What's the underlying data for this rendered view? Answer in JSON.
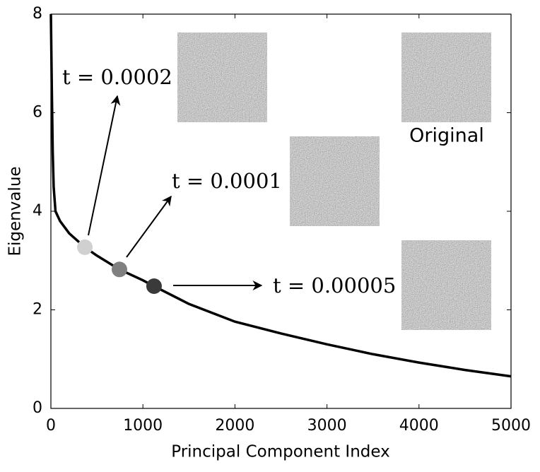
{
  "chart_data": {
    "type": "line",
    "x_label": "Principal Component Index",
    "y_label": "Eigenvalue",
    "x": [
      0,
      10,
      20,
      30,
      50,
      100,
      200,
      369,
      500,
      745,
      1000,
      1121,
      1500,
      2000,
      2500,
      3000,
      3500,
      4000,
      4500,
      5000
    ],
    "values": [
      8,
      6.5,
      5.2,
      4.5,
      4.0,
      3.8,
      3.55,
      3.27,
      3.1,
      2.82,
      2.6,
      2.48,
      2.12,
      1.76,
      1.52,
      1.3,
      1.1,
      0.93,
      0.78,
      0.65
    ],
    "color": "#000000",
    "xlim": [
      0,
      5000
    ],
    "xticks": [
      0,
      1000,
      2000,
      3000,
      4000,
      5000
    ],
    "ylim": [
      0,
      8
    ],
    "yticks": [
      0,
      2,
      4,
      6,
      8
    ],
    "annotations": [
      {
        "text": "t = 0.0002",
        "x": 369,
        "y": 3.27,
        "color": "#d0d0d0"
      },
      {
        "text": "t = 0.0001",
        "x": 745,
        "y": 2.82,
        "color": "#808080"
      },
      {
        "text": "t = 0.00005",
        "x": 1121,
        "y": 2.48,
        "color": "#3a3a3a"
      }
    ],
    "image_caption": "Original"
  }
}
